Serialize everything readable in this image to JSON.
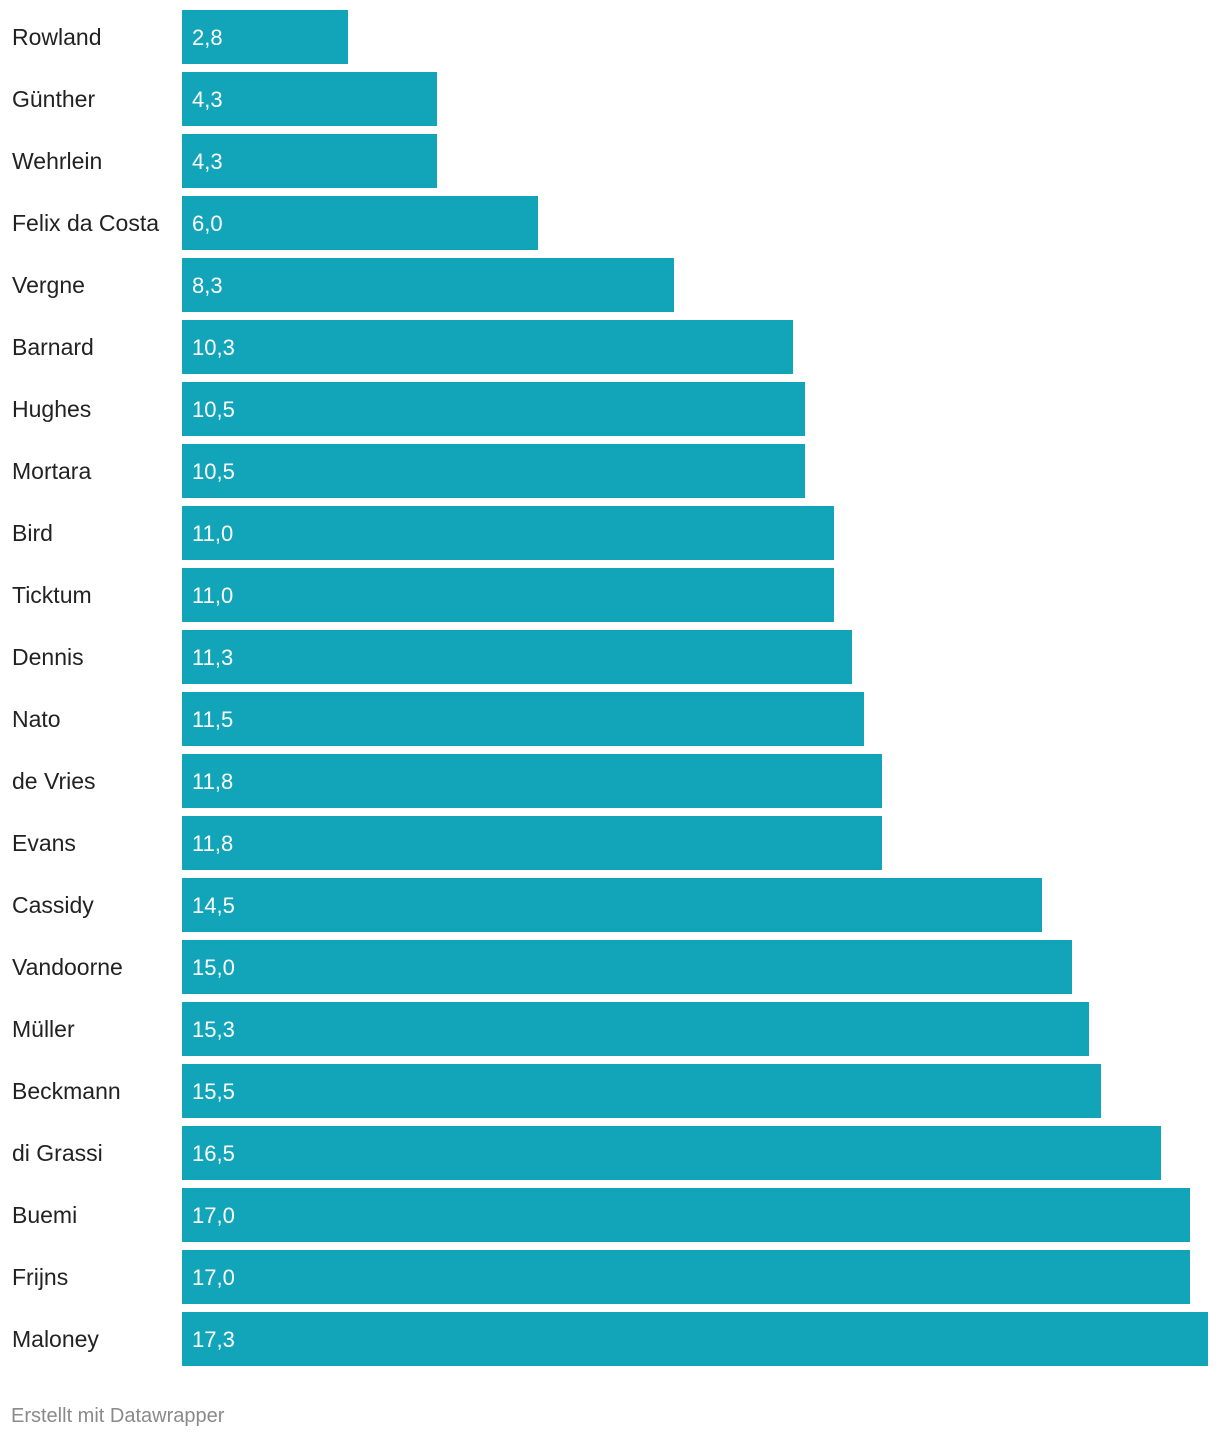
{
  "chart_data": {
    "type": "bar",
    "orientation": "horizontal",
    "categories": [
      "Rowland",
      "Günther",
      "Wehrlein",
      "Felix da Costa",
      "Vergne",
      "Barnard",
      "Hughes",
      "Mortara",
      "Bird",
      "Ticktum",
      "Dennis",
      "Nato",
      "de Vries",
      "Evans",
      "Cassidy",
      "Vandoorne",
      "Müller",
      "Beckmann",
      "di Grassi",
      "Buemi",
      "Frijns",
      "Maloney"
    ],
    "values": [
      2.8,
      4.3,
      4.3,
      6.0,
      8.3,
      10.3,
      10.5,
      10.5,
      11.0,
      11.0,
      11.3,
      11.5,
      11.8,
      11.8,
      14.5,
      15.0,
      15.3,
      15.5,
      16.5,
      17.0,
      17.0,
      17.3
    ],
    "value_labels": [
      "2,8",
      "4,3",
      "4,3",
      "6,0",
      "8,3",
      "10,3",
      "10,5",
      "10,5",
      "11,0",
      "11,0",
      "11,3",
      "11,5",
      "11,8",
      "11,8",
      "14,5",
      "15,0",
      "15,3",
      "15,5",
      "16,5",
      "17,0",
      "17,0",
      "17,3"
    ],
    "title": "",
    "xlabel": "",
    "ylabel": "",
    "xlim": [
      0,
      17.3
    ],
    "grid": false,
    "legend": "none",
    "bar_color": "#12a5b9"
  },
  "footer": {
    "credit": "Erstellt mit Datawrapper"
  }
}
